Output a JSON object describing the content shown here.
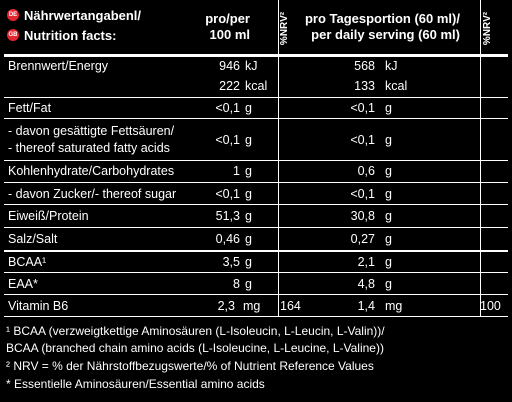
{
  "header": {
    "flag_de": "DE",
    "flag_en": "GB",
    "title_de": "Nährwertangabenl/",
    "title_en": "Nutrition facts:",
    "per100_l1": "pro/per",
    "per100_l2": "100 ml",
    "nrv1": "%NRV²",
    "daily_l1": "pro Tagesportion (60 ml)/",
    "daily_l2": "per daily serving (60 ml)",
    "nrv2": "%NRV²"
  },
  "rows": [
    {
      "label": "Brennwert/Energy",
      "v100": "946",
      "u100": "kJ",
      "nrv100": "",
      "vd": "568",
      "ud": "kJ",
      "nrvd": ""
    },
    {
      "label": "",
      "v100": "222",
      "u100": "kcal",
      "nrv100": "",
      "vd": "133",
      "ud": "kcal",
      "nrvd": ""
    },
    {
      "label": "Fett/Fat",
      "v100": "<0,1",
      "u100": "g",
      "nrv100": "",
      "vd": "<0,1",
      "ud": "g",
      "nrvd": ""
    },
    {
      "label": " - davon gesättigte Fettsäuren/",
      "label2": " - thereof saturated fatty acids",
      "v100": "<0,1",
      "u100": "g",
      "nrv100": "",
      "vd": "<0,1",
      "ud": "g",
      "nrvd": ""
    },
    {
      "label": "Kohlenhydrate/Carbohydrates",
      "v100": "1",
      "u100": "g",
      "nrv100": "",
      "vd": "0,6",
      "ud": "g",
      "nrvd": ""
    },
    {
      "label": " - davon Zucker/- thereof sugar",
      "v100": "<0,1",
      "u100": "g",
      "nrv100": "",
      "vd": "<0,1",
      "ud": "g",
      "nrvd": ""
    },
    {
      "label": "Eiweiß/Protein",
      "v100": "51,3",
      "u100": "g",
      "nrv100": "",
      "vd": "30,8",
      "ud": "g",
      "nrvd": ""
    },
    {
      "label": "Salz/Salt",
      "v100": "0,46",
      "u100": "g",
      "nrv100": "",
      "vd": "0,27",
      "ud": "g",
      "nrvd": ""
    },
    {
      "label": "BCAA¹",
      "v100": "3,5",
      "u100": "g",
      "nrv100": "",
      "vd": "2,1",
      "ud": "g",
      "nrvd": ""
    },
    {
      "label": "EAA*",
      "v100": "8",
      "u100": "g",
      "nrv100": "",
      "vd": "4,8",
      "ud": "g",
      "nrvd": ""
    },
    {
      "label": "Vitamin B6",
      "v100": "2,3",
      "u100": "mg",
      "nrv100": "164",
      "vd": "1,4",
      "ud": "mg",
      "nrvd": "100"
    }
  ],
  "footnotes": {
    "f1_l1": "¹ BCAA (verzweigtkettige Aminosäuren (L-Isoleucin, L-Leucin, L-Valin))/",
    "f1_l2": "  BCAA (branched chain amino acids (L-Isoleucine, L-Leucine, L-Valine))",
    "f2": "² NRV = % der Nährstoffbezugswerte/% of Nutrient Reference Values",
    "f3": "* Essentielle Aminosäuren/Essential amino acids"
  }
}
